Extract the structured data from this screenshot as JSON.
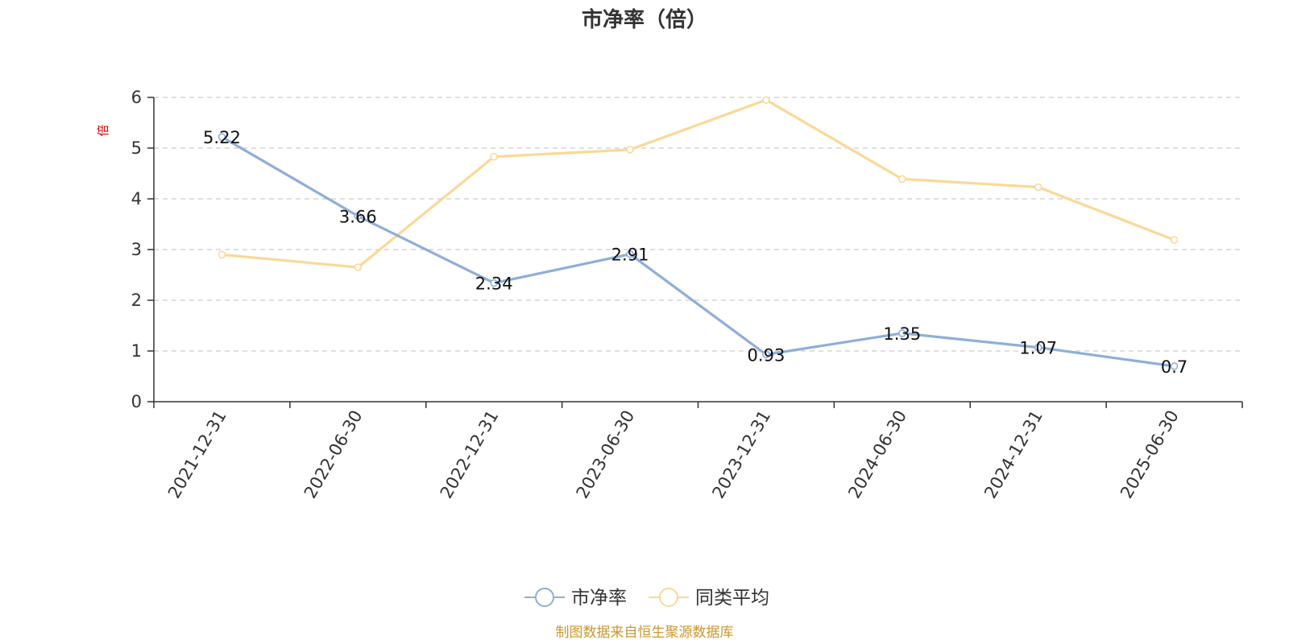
{
  "chart_data": {
    "type": "line",
    "title": "市净率（倍）",
    "ylabel": "倍",
    "xlabel": "",
    "categories": [
      "2021-12-31",
      "2022-06-30",
      "2022-12-31",
      "2023-06-30",
      "2023-12-31",
      "2024-06-30",
      "2024-12-31",
      "2025-06-30"
    ],
    "ylim": [
      0,
      6
    ],
    "y_ticks": [
      "0",
      "1",
      "2",
      "3",
      "4",
      "5",
      "6"
    ],
    "grid": true,
    "legend_position": "bottom-center",
    "series": [
      {
        "name": "市净率",
        "values": [
          5.22,
          3.66,
          2.34,
          2.91,
          0.93,
          1.35,
          1.07,
          0.7
        ],
        "data_labels": [
          "5.22",
          "3.66",
          "2.34",
          "2.91",
          "0.93",
          "1.35",
          "1.07",
          "0.7"
        ],
        "color": "#8eaedb"
      },
      {
        "name": "同类平均",
        "values": [
          2.9,
          2.65,
          4.83,
          4.97,
          5.95,
          4.39,
          4.23,
          3.19
        ],
        "color": "#fbd898"
      }
    ],
    "source": "制图数据来自恒生聚源数据库",
    "source_color": "#c9972f"
  }
}
